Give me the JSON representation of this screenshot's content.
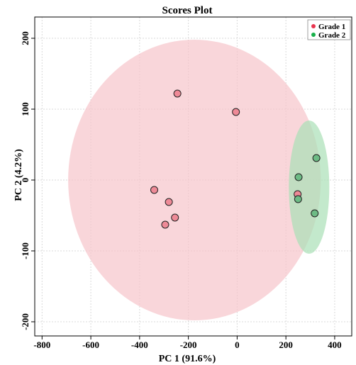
{
  "chart_data": {
    "type": "scatter",
    "title": "Scores Plot",
    "xlabel": "PC 1 (91.6%)",
    "ylabel": "PC 2 (4.2%)",
    "xlim": [
      -830,
      470
    ],
    "ylim": [
      -220,
      230
    ],
    "xticks": [
      -800,
      -600,
      -400,
      -200,
      0,
      200,
      400
    ],
    "yticks": [
      -200,
      -100,
      0,
      100,
      200
    ],
    "grid": true,
    "legend_position": "top-right",
    "series": [
      {
        "name": "Grade 1",
        "color": "#e8344e",
        "marker_fill": "#ee8a97",
        "ellipse_fill": "#f7c4cb",
        "ellipse": {
          "cx": -175,
          "cy": 0,
          "rx": 518,
          "ry": 198,
          "angle_deg": 0
        },
        "points": [
          {
            "x": -245,
            "y": 122
          },
          {
            "x": -5,
            "y": 96
          },
          {
            "x": -340,
            "y": -14
          },
          {
            "x": -280,
            "y": -31
          },
          {
            "x": -255,
            "y": -53
          },
          {
            "x": -295,
            "y": -63
          },
          {
            "x": 248,
            "y": -20
          }
        ]
      },
      {
        "name": "Grade 2",
        "color": "#18b04a",
        "marker_fill": "#6dbb85",
        "ellipse_fill": "#a9e0b6",
        "ellipse": {
          "cx": 295,
          "cy": -10,
          "rx": 83,
          "ry": 94,
          "angle_deg": 0
        },
        "points": [
          {
            "x": 325,
            "y": 31
          },
          {
            "x": 252,
            "y": 4
          },
          {
            "x": 250,
            "y": -27
          },
          {
            "x": 318,
            "y": -47
          }
        ]
      }
    ]
  }
}
